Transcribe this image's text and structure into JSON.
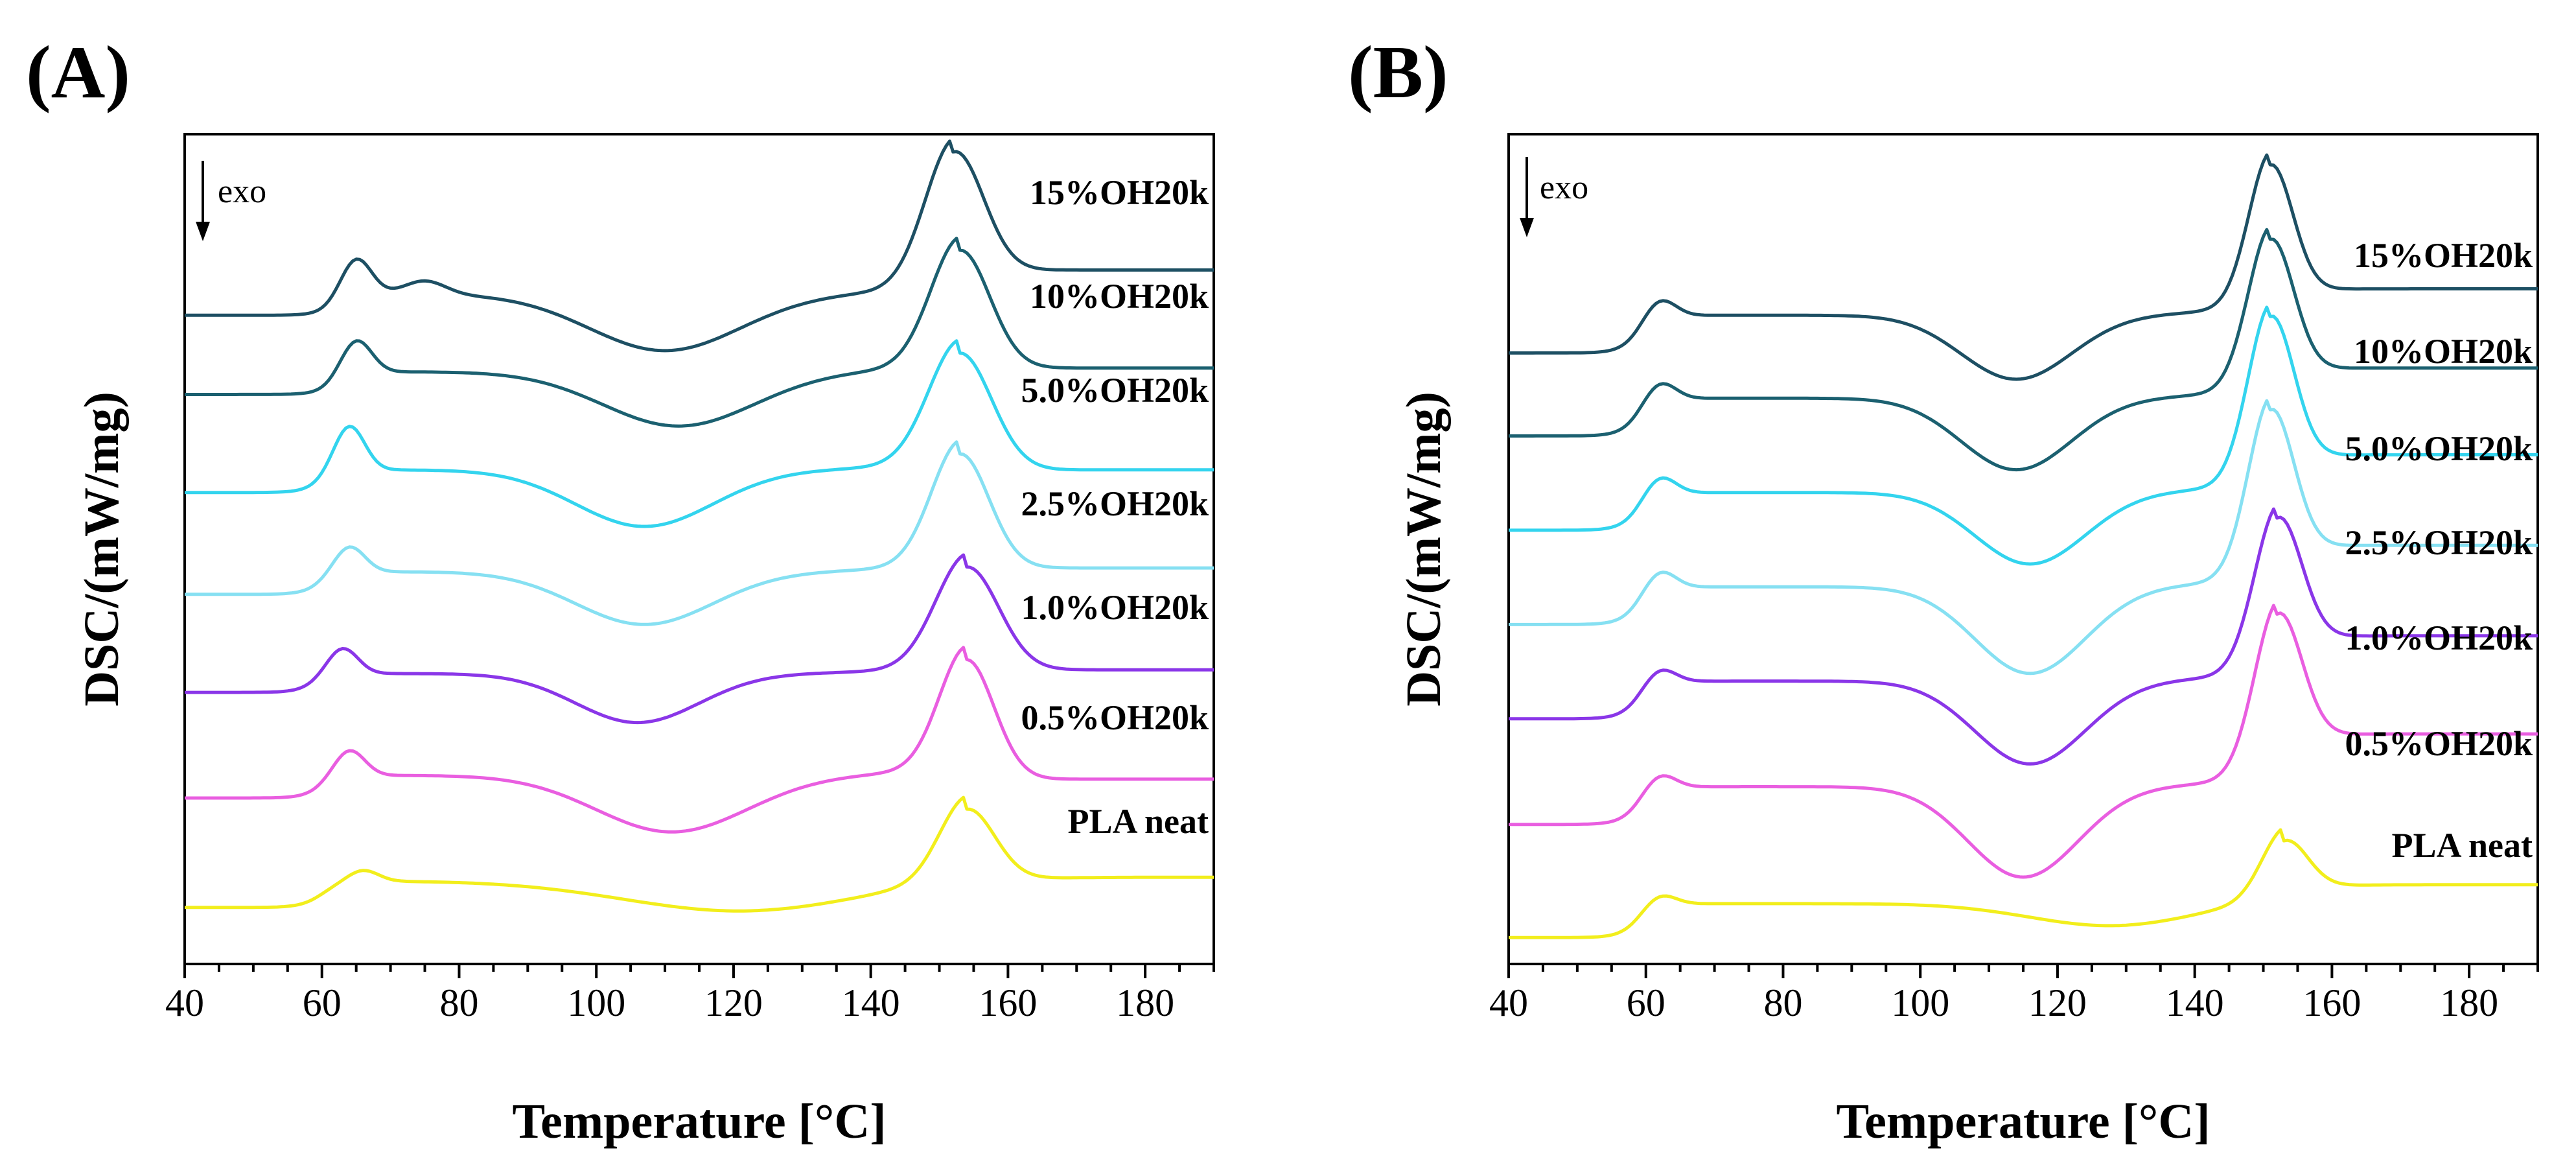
{
  "chart_data": [
    {
      "type": "line",
      "panel_label": "(A)",
      "xlabel": "Temperature [°C]",
      "ylabel": "DSC/(mW/mg)",
      "xlim": [
        40,
        190
      ],
      "xticks": [
        40,
        60,
        80,
        100,
        120,
        140,
        160,
        180
      ],
      "xtick_labels": [
        "40",
        "60",
        "80",
        "100",
        "120",
        "140",
        "160",
        "180"
      ],
      "y_units": "arbitrary (curves vertically offset)",
      "yticks_shown": false,
      "annotation": "exo",
      "series": [
        {
          "name": "15%OH20k",
          "color": "#1d4f63",
          "baseline": 8.6,
          "glass_transition": 62,
          "glass_step": 0.28,
          "tg_peak": 65,
          "tg_peak_height": 0.5,
          "extra_peak": 75,
          "extra_peak_height": 0.18,
          "cold_crystallization_peak": 110,
          "cold_crystallization_depth": 0.75,
          "cold_crystallization_width": 11,
          "melting_peak": 152,
          "melting_height": 1.8,
          "melting_width": 4.2,
          "end_value": 9.2
        },
        {
          "name": "10%OH20k",
          "color": "#1b6070",
          "baseline": 7.55,
          "glass_transition": 62,
          "glass_step": 0.3,
          "tg_peak": 65,
          "tg_peak_height": 0.45,
          "extra_peak": null,
          "extra_peak_height": 0,
          "cold_crystallization_peak": 112,
          "cold_crystallization_depth": 0.72,
          "cold_crystallization_width": 11,
          "melting_peak": 153,
          "melting_height": 1.6,
          "melting_width": 4.3,
          "end_value": 7.9
        },
        {
          "name": "5.0%OH20k",
          "color": "#33d4ee",
          "baseline": 6.25,
          "glass_transition": 60,
          "glass_step": 0.3,
          "tg_peak": 64,
          "tg_peak_height": 0.6,
          "extra_peak": null,
          "extra_peak_height": 0,
          "cold_crystallization_peak": 107,
          "cold_crystallization_depth": 0.75,
          "cold_crystallization_width": 10,
          "melting_peak": 153,
          "melting_height": 1.55,
          "melting_width": 4.6,
          "end_value": 6.55
        },
        {
          "name": "2.5%OH20k",
          "color": "#86e0f2",
          "baseline": 4.9,
          "glass_transition": 60,
          "glass_step": 0.3,
          "tg_peak": 64,
          "tg_peak_height": 0.35,
          "extra_peak": null,
          "extra_peak_height": 0,
          "cold_crystallization_peak": 107,
          "cold_crystallization_depth": 0.7,
          "cold_crystallization_width": 10,
          "melting_peak": 153,
          "melting_height": 1.55,
          "melting_width": 4.2,
          "end_value": 5.25
        },
        {
          "name": "1.0%OH20k",
          "color": "#8a36e8",
          "baseline": 3.6,
          "glass_transition": 59,
          "glass_step": 0.25,
          "tg_peak": 63,
          "tg_peak_height": 0.35,
          "extra_peak": null,
          "extra_peak_height": 0,
          "cold_crystallization_peak": 106,
          "cold_crystallization_depth": 0.65,
          "cold_crystallization_width": 9,
          "melting_peak": 154,
          "melting_height": 1.4,
          "melting_width": 4.6,
          "end_value": 3.9
        },
        {
          "name": "0.5%OH20k",
          "color": "#e95ee0",
          "baseline": 2.2,
          "glass_transition": 60,
          "glass_step": 0.3,
          "tg_peak": 64,
          "tg_peak_height": 0.35,
          "extra_peak": null,
          "extra_peak_height": 0,
          "cold_crystallization_peak": 111,
          "cold_crystallization_depth": 0.75,
          "cold_crystallization_width": 11,
          "melting_peak": 154,
          "melting_height": 1.55,
          "melting_width": 4.0,
          "end_value": 2.45
        },
        {
          "name": "PLA neat",
          "color": "#f2ee1c",
          "baseline": 0.75,
          "glass_transition": 60,
          "glass_step": 0.35,
          "tg_peak": 66,
          "tg_peak_height": 0.15,
          "extra_peak": null,
          "extra_peak_height": 0,
          "cold_crystallization_peak": 121,
          "cold_crystallization_depth": 0.4,
          "cold_crystallization_width": 17,
          "melting_peak": 154,
          "melting_height": 1.0,
          "melting_width": 4.0,
          "end_value": 1.15
        }
      ],
      "ylim": [
        0.0,
        11.0
      ]
    },
    {
      "type": "line",
      "panel_label": "(B)",
      "xlabel": "Temperature [°C]",
      "ylabel": "DSC/(mW/mg)",
      "xlim": [
        40,
        190
      ],
      "xticks": [
        40,
        60,
        80,
        100,
        120,
        140,
        160,
        180
      ],
      "xtick_labels": [
        "40",
        "60",
        "80",
        "100",
        "120",
        "140",
        "160",
        "180"
      ],
      "y_units": "arbitrary (curves vertically offset)",
      "yticks_shown": false,
      "annotation": "exo",
      "series": [
        {
          "name": "15%OH20k",
          "color": "#1d4f63",
          "baseline": 8.1,
          "glass_transition": 59,
          "glass_step": 0.5,
          "tg_peak": 62,
          "tg_peak_height": 0.25,
          "extra_peak": null,
          "extra_peak_height": 0,
          "cold_crystallization_peak": 114,
          "cold_crystallization_depth": 0.85,
          "cold_crystallization_width": 8,
          "melting_peak": 151,
          "melting_height": 1.9,
          "melting_width": 3.2,
          "end_value": 8.95
        },
        {
          "name": "10%OH20k",
          "color": "#1b6070",
          "baseline": 7.0,
          "glass_transition": 59,
          "glass_step": 0.5,
          "tg_peak": 62,
          "tg_peak_height": 0.25,
          "extra_peak": null,
          "extra_peak_height": 0,
          "cold_crystallization_peak": 114,
          "cold_crystallization_depth": 0.95,
          "cold_crystallization_width": 8,
          "melting_peak": 151,
          "melting_height": 2.0,
          "melting_width": 3.3,
          "end_value": 7.9
        },
        {
          "name": "5.0%OH20k",
          "color": "#33d4ee",
          "baseline": 5.75,
          "glass_transition": 59,
          "glass_step": 0.5,
          "tg_peak": 62,
          "tg_peak_height": 0.25,
          "extra_peak": null,
          "extra_peak_height": 0,
          "cold_crystallization_peak": 116,
          "cold_crystallization_depth": 0.95,
          "cold_crystallization_width": 8,
          "melting_peak": 151,
          "melting_height": 2.2,
          "melting_width": 3.3,
          "end_value": 6.75
        },
        {
          "name": "2.5%OH20k",
          "color": "#86e0f2",
          "baseline": 4.5,
          "glass_transition": 59,
          "glass_step": 0.5,
          "tg_peak": 62,
          "tg_peak_height": 0.25,
          "extra_peak": null,
          "extra_peak_height": 0,
          "cold_crystallization_peak": 116,
          "cold_crystallization_depth": 1.15,
          "cold_crystallization_width": 8,
          "melting_peak": 151,
          "melting_height": 2.2,
          "melting_width": 3.3,
          "end_value": 5.55
        },
        {
          "name": "1.0%OH20k",
          "color": "#8a36e8",
          "baseline": 3.25,
          "glass_transition": 59,
          "glass_step": 0.5,
          "tg_peak": 62,
          "tg_peak_height": 0.2,
          "extra_peak": null,
          "extra_peak_height": 0,
          "cold_crystallization_peak": 116,
          "cold_crystallization_depth": 1.1,
          "cold_crystallization_width": 8,
          "melting_peak": 152,
          "melting_height": 2.0,
          "melting_width": 3.4,
          "end_value": 4.35
        },
        {
          "name": "0.5%OH20k",
          "color": "#e95ee0",
          "baseline": 1.85,
          "glass_transition": 59,
          "glass_step": 0.5,
          "tg_peak": 62,
          "tg_peak_height": 0.2,
          "extra_peak": null,
          "extra_peak_height": 0,
          "cold_crystallization_peak": 115,
          "cold_crystallization_depth": 1.2,
          "cold_crystallization_width": 8,
          "melting_peak": 152,
          "melting_height": 2.1,
          "melting_width": 3.4,
          "end_value": 3.05
        },
        {
          "name": "PLA neat",
          "color": "#f2ee1c",
          "baseline": 0.35,
          "glass_transition": 59,
          "glass_step": 0.45,
          "tg_peak": 62,
          "tg_peak_height": 0.15,
          "extra_peak": null,
          "extra_peak_height": 0,
          "cold_crystallization_peak": 128,
          "cold_crystallization_depth": 0.3,
          "cold_crystallization_width": 12,
          "melting_peak": 153,
          "melting_height": 0.8,
          "melting_width": 3.3,
          "end_value": 1.05
        }
      ],
      "ylim": [
        0.0,
        11.0
      ]
    }
  ]
}
